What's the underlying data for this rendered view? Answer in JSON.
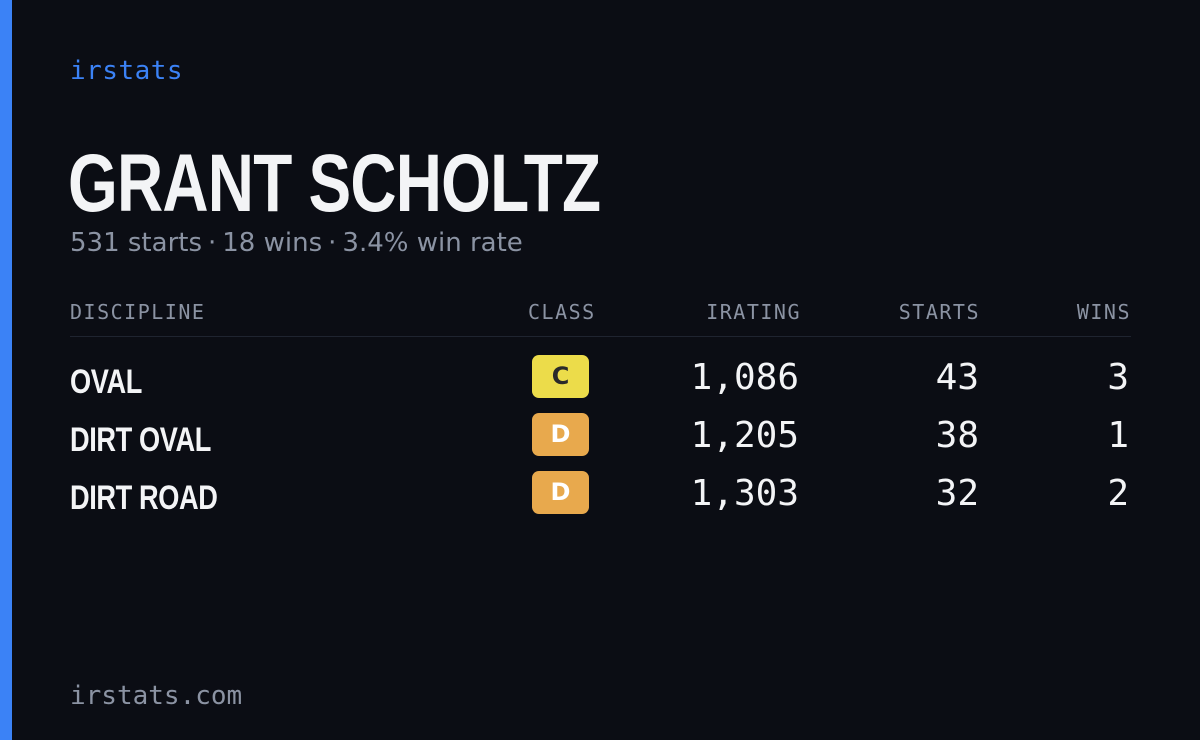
{
  "brand": "irstats",
  "player": {
    "name": "GRANT SCHOLTZ"
  },
  "summary": {
    "starts": "531 starts",
    "wins": "18 wins",
    "win_rate": "3.4% win rate",
    "separator": "·"
  },
  "table": {
    "headers": {
      "discipline": "DISCIPLINE",
      "class": "CLASS",
      "irating": "IRATING",
      "starts": "STARTS",
      "wins": "WINS"
    },
    "rows": [
      {
        "discipline": "OVAL",
        "class": "C",
        "class_color": "#ecdc4a",
        "irating": "1,086",
        "starts": "43",
        "wins": "3"
      },
      {
        "discipline": "DIRT OVAL",
        "class": "D",
        "class_color": "#e8a94d",
        "irating": "1,205",
        "starts": "38",
        "wins": "1"
      },
      {
        "discipline": "DIRT ROAD",
        "class": "D",
        "class_color": "#e8a94d",
        "irating": "1,303",
        "starts": "32",
        "wins": "2"
      }
    ]
  },
  "footer": {
    "domain": "irstats.com"
  },
  "colors": {
    "background": "#0b0d14",
    "accent": "#3b82f6",
    "text_primary": "#f3f4f6",
    "text_muted": "#8b93a3"
  }
}
